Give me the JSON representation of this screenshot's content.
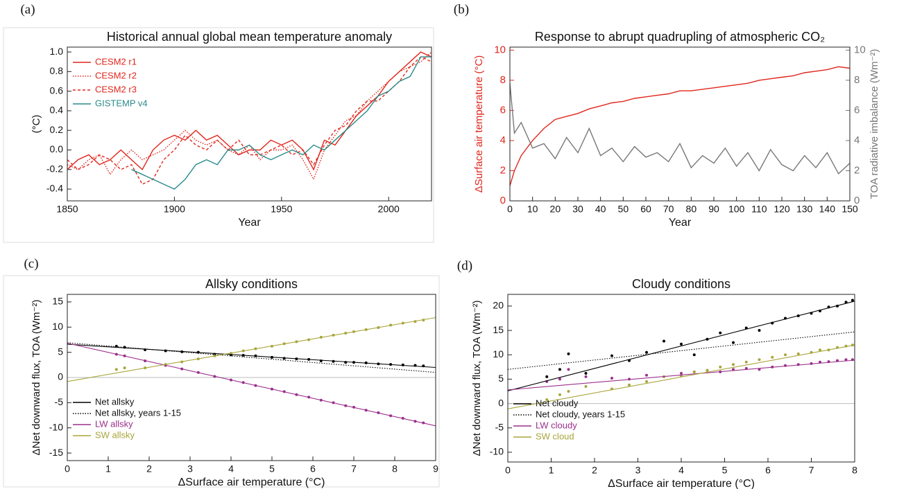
{
  "chart_data": [
    {
      "type": "line",
      "panel_label": "(a)",
      "title": "Historical annual global mean temperature anomaly",
      "xlabel": "Year",
      "ylabel": "(°C)",
      "x": [
        1850,
        1855,
        1860,
        1865,
        1870,
        1875,
        1880,
        1885,
        1890,
        1895,
        1900,
        1905,
        1910,
        1915,
        1920,
        1925,
        1930,
        1935,
        1940,
        1945,
        1950,
        1955,
        1960,
        1965,
        1970,
        1975,
        1980,
        1985,
        1990,
        1995,
        2000,
        2005,
        2010,
        2015,
        2020
      ],
      "xlim": [
        1850,
        2020
      ],
      "xticks": [
        1850,
        1900,
        1950,
        2000
      ],
      "ylim": [
        -0.52,
        1.05
      ],
      "yticks": [
        -0.4,
        -0.2,
        {
          "value": 0,
          "label": "0.0"
        },
        0.2,
        0.4,
        0.6,
        0.8,
        {
          "value": 1,
          "label": "1.0"
        }
      ],
      "legend": "upper left",
      "series": [
        {
          "name": "CESM2 r1",
          "color": "#e0251b",
          "dash": "solid",
          "values": [
            -0.2,
            -0.1,
            -0.05,
            -0.15,
            -0.1,
            0.0,
            -0.1,
            -0.2,
            0.0,
            0.1,
            0.15,
            0.1,
            0.2,
            0.1,
            0.15,
            0.05,
            -0.05,
            0.0,
            0.0,
            0.1,
            0.05,
            0.1,
            0.0,
            -0.2,
            0.1,
            0.05,
            0.2,
            0.35,
            0.45,
            0.55,
            0.7,
            0.8,
            0.9,
            1.0,
            0.95
          ]
        },
        {
          "name": "CESM2 r2",
          "color": "#e0251b",
          "dash": "dotted",
          "values": [
            -0.15,
            -0.2,
            -0.1,
            -0.05,
            -0.25,
            -0.1,
            0.0,
            -0.1,
            -0.05,
            0.0,
            0.1,
            0.2,
            0.1,
            0.05,
            0.1,
            0.0,
            -0.05,
            0.05,
            -0.1,
            0.0,
            0.0,
            0.05,
            -0.1,
            -0.3,
            0.0,
            0.15,
            0.3,
            0.35,
            0.5,
            0.6,
            0.7,
            0.8,
            0.85,
            0.9,
            1.0
          ]
        },
        {
          "name": "CESM2 r3",
          "color": "#e0251b",
          "dash": "dashed",
          "values": [
            -0.1,
            -0.2,
            -0.15,
            -0.05,
            -0.1,
            -0.2,
            -0.15,
            -0.35,
            -0.3,
            -0.1,
            0.0,
            0.15,
            0.05,
            0.0,
            0.1,
            0.0,
            0.1,
            -0.05,
            -0.05,
            0.0,
            0.05,
            -0.05,
            0.0,
            -0.15,
            0.05,
            0.2,
            0.25,
            0.4,
            0.5,
            0.5,
            0.6,
            0.7,
            0.85,
            0.95,
            0.9
          ]
        },
        {
          "name": "GISTEMP v4",
          "color": "#2a8a8a",
          "dash": "solid",
          "values": [
            null,
            null,
            null,
            null,
            null,
            null,
            -0.2,
            -0.25,
            -0.3,
            -0.35,
            -0.4,
            -0.3,
            -0.15,
            -0.1,
            -0.15,
            0.0,
            0.0,
            0.05,
            -0.05,
            -0.1,
            -0.05,
            0.0,
            -0.05,
            0.05,
            0.0,
            0.1,
            0.2,
            0.3,
            0.4,
            0.55,
            0.6,
            0.7,
            0.75,
            0.95,
            0.95
          ]
        }
      ]
    },
    {
      "type": "line",
      "panel_label": "(b)",
      "title": "Response to abrupt quadrupling of atmospheric CO₂",
      "xlabel": "Year",
      "ylabel": "ΔSurface air temperature (°C)",
      "y2label": "TOA radiative imbalance (Wm⁻²)",
      "ylabel_color": "#e0251b",
      "y2label_color": "#777777",
      "x": [
        0,
        2,
        5,
        10,
        15,
        20,
        25,
        30,
        35,
        40,
        45,
        50,
        55,
        60,
        65,
        70,
        75,
        80,
        85,
        90,
        95,
        100,
        105,
        110,
        115,
        120,
        125,
        130,
        135,
        140,
        145,
        150
      ],
      "xlim": [
        0,
        150
      ],
      "xticks": [
        0,
        10,
        20,
        30,
        40,
        50,
        60,
        70,
        80,
        90,
        100,
        110,
        120,
        130,
        140,
        150
      ],
      "ylim": [
        0,
        10.2
      ],
      "yticks": [
        0,
        2,
        4,
        6,
        8,
        10
      ],
      "y2lim": [
        0,
        10.2
      ],
      "y2ticks": [
        0,
        2,
        4,
        6,
        8,
        10
      ],
      "series": [
        {
          "color": "#e0251b",
          "dash": "solid",
          "axis": "y",
          "values": [
            1.0,
            2.0,
            3.0,
            4.0,
            4.8,
            5.4,
            5.6,
            5.8,
            6.1,
            6.3,
            6.5,
            6.6,
            6.8,
            6.9,
            7.0,
            7.1,
            7.3,
            7.3,
            7.4,
            7.5,
            7.6,
            7.7,
            7.8,
            8.0,
            8.1,
            8.2,
            8.3,
            8.5,
            8.6,
            8.7,
            8.9,
            8.8
          ]
        },
        {
          "color": "#777777",
          "dash": "solid",
          "axis": "y2",
          "values": [
            7.8,
            4.5,
            5.2,
            3.5,
            3.8,
            2.8,
            4.2,
            3.2,
            4.8,
            3.0,
            3.5,
            2.6,
            3.6,
            2.9,
            3.2,
            2.6,
            3.8,
            2.2,
            3.0,
            2.5,
            3.5,
            2.3,
            3.2,
            2.0,
            3.4,
            2.4,
            2.0,
            3.0,
            2.2,
            3.2,
            1.8,
            2.5
          ]
        }
      ]
    },
    {
      "type": "scatter",
      "panel_label": "(c)",
      "title": "Allsky conditions",
      "xlabel": "ΔSurface air temperature (°C)",
      "ylabel": "ΔNet downward flux, TOA (Wm⁻²)",
      "xlim": [
        0,
        9
      ],
      "xticks": [
        0,
        1,
        2,
        3,
        4,
        5,
        6,
        7,
        8,
        9
      ],
      "ylim": [
        -16.5,
        16.5
      ],
      "yticks": [
        -15,
        -10,
        -5,
        0,
        5,
        10,
        15
      ],
      "legend": "lower left",
      "points_x": [
        1.2,
        1.4,
        1.9,
        2.4,
        2.8,
        3.2,
        3.6,
        4.0,
        4.3,
        4.6,
        5.0,
        5.3,
        5.6,
        5.9,
        6.2,
        6.5,
        6.8,
        7.0,
        7.3,
        7.6,
        7.9,
        8.2,
        8.5,
        8.7
      ],
      "points": [
        {
          "color": "#000000",
          "values": [
            6.2,
            6.0,
            5.5,
            5.3,
            5.1,
            5.0,
            4.6,
            4.5,
            4.4,
            4.3,
            4.0,
            3.8,
            3.7,
            3.6,
            3.3,
            3.2,
            3.0,
            3.0,
            2.9,
            2.7,
            2.6,
            2.5,
            2.4,
            2.3
          ]
        },
        {
          "color": "#9b2f8c",
          "values": [
            4.6,
            4.3,
            3.3,
            2.4,
            1.7,
            1.0,
            0.2,
            -0.5,
            -1.0,
            -1.6,
            -2.3,
            -2.8,
            -3.4,
            -3.9,
            -4.5,
            -5.0,
            -5.6,
            -5.9,
            -6.5,
            -7.0,
            -7.6,
            -8.1,
            -8.7,
            -9.0
          ]
        },
        {
          "color": "#a8a53a",
          "values": [
            1.6,
            1.9,
            1.9,
            2.6,
            3.1,
            3.7,
            4.3,
            4.8,
            5.3,
            5.7,
            6.2,
            6.7,
            7.1,
            7.5,
            8.0,
            8.4,
            8.8,
            9.1,
            9.5,
            9.9,
            10.4,
            10.8,
            11.1,
            11.4
          ]
        }
      ],
      "lines": [
        {
          "name": "Net allsky",
          "color": "#000000",
          "dash": "solid",
          "x": [
            0,
            9
          ],
          "values": [
            6.6,
            2.0
          ]
        },
        {
          "name": "Net allsky, years 1-15",
          "color": "#000000",
          "dash": "dotted",
          "x": [
            0,
            9
          ],
          "values": [
            6.9,
            1.0
          ]
        },
        {
          "name": "LW allsky",
          "color": "#9b2f8c",
          "dash": "solid",
          "x": [
            0,
            9
          ],
          "values": [
            6.8,
            -9.6
          ]
        },
        {
          "name": "SW allsky",
          "color": "#a8a53a",
          "dash": "solid",
          "x": [
            0,
            9
          ],
          "values": [
            -0.8,
            11.9
          ]
        }
      ]
    },
    {
      "type": "scatter",
      "panel_label": "(d)",
      "title": "Cloudy conditions",
      "xlabel": "ΔSurface air temperature (°C)",
      "ylabel": "ΔNet downward flux, TOA (Wm⁻²)",
      "xlim": [
        0,
        8
      ],
      "xticks": [
        0,
        1,
        2,
        3,
        4,
        5,
        6,
        7,
        8
      ],
      "ylim": [
        -12,
        22.4
      ],
      "yticks": [
        -10,
        -5,
        0,
        5,
        10,
        15,
        20
      ],
      "legend": "lower left",
      "points_x": [
        0.9,
        1.2,
        1.4,
        1.8,
        2.4,
        2.8,
        3.2,
        3.6,
        4.0,
        4.3,
        4.6,
        4.9,
        5.2,
        5.5,
        5.8,
        6.1,
        6.4,
        6.7,
        7.0,
        7.2,
        7.4,
        7.6,
        7.8,
        7.95
      ],
      "points": [
        {
          "color": "#000000",
          "values": [
            5.5,
            7.0,
            10.2,
            6.2,
            9.8,
            8.8,
            10.5,
            12.8,
            12.2,
            10.0,
            13.2,
            14.5,
            12.5,
            15.5,
            15.0,
            16.5,
            17.5,
            18.0,
            18.5,
            19.0,
            19.8,
            20.0,
            20.8,
            21.2
          ]
        },
        {
          "color": "#9b2f8c",
          "values": [
            4.5,
            5.0,
            7.0,
            5.5,
            5.2,
            5.0,
            5.8,
            5.5,
            6.2,
            6.5,
            6.8,
            6.5,
            7.0,
            7.2,
            7.0,
            7.5,
            7.8,
            8.0,
            8.2,
            8.5,
            8.6,
            8.8,
            9.0,
            9.0
          ]
        },
        {
          "color": "#a8a53a",
          "values": [
            0.8,
            1.8,
            2.5,
            3.5,
            3.0,
            3.8,
            4.5,
            5.5,
            5.7,
            6.5,
            6.8,
            7.5,
            8.0,
            8.5,
            9.0,
            9.5,
            10.0,
            10.2,
            10.5,
            11.0,
            11.0,
            11.5,
            11.8,
            12.0
          ]
        }
      ],
      "lines": [
        {
          "name": "Net cloudy",
          "color": "#000000",
          "dash": "solid",
          "x": [
            0,
            8
          ],
          "values": [
            2.6,
            21.0
          ]
        },
        {
          "name": "Net cloudy, years 1-15",
          "color": "#000000",
          "dash": "dotted",
          "x": [
            0,
            8
          ],
          "values": [
            7.0,
            14.7
          ]
        },
        {
          "name": "LW cloudy",
          "color": "#9b2f8c",
          "dash": "solid",
          "x": [
            0,
            8
          ],
          "values": [
            2.8,
            8.9
          ]
        },
        {
          "name": "SW cloud",
          "color": "#a8a53a",
          "dash": "solid",
          "x": [
            0,
            8
          ],
          "values": [
            -1.1,
            12.0
          ]
        }
      ]
    }
  ]
}
